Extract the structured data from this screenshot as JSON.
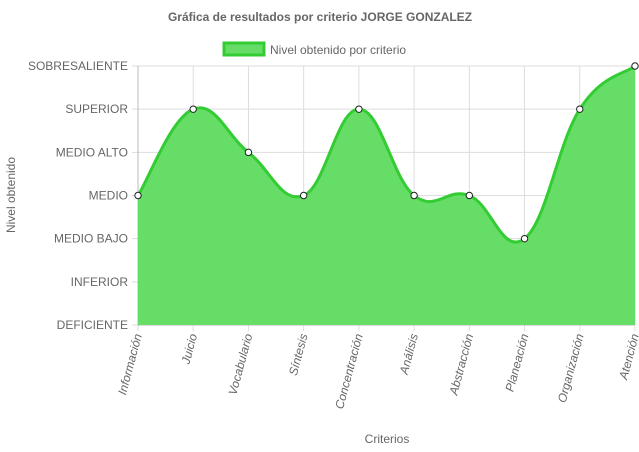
{
  "chart_data": {
    "type": "area",
    "title": "Gráfica de resultados por criterio JORGE GONZALEZ",
    "xlabel": "Criterios",
    "ylabel": "Nivel obtenido",
    "y_levels": [
      "DEFICIENTE",
      "INFERIOR",
      "MEDIO BAJO",
      "MEDIO",
      "MEDIO ALTO",
      "SUPERIOR",
      "SOBRESALIENTE"
    ],
    "ylim": [
      0,
      6
    ],
    "categories": [
      "Información",
      "Juicio",
      "Vocabulario",
      "Síntesis",
      "Concentración",
      "Análisis",
      "Abstracción",
      "Planeación",
      "Organización",
      "Atención"
    ],
    "series": [
      {
        "name": "Nivel obtenido por criterio",
        "values": [
          3,
          5,
          4,
          3,
          5,
          3,
          3,
          2,
          5,
          6
        ],
        "color": "#33cc33",
        "fill": "#66dd66"
      }
    ],
    "grid": true,
    "legend_position": "top"
  }
}
